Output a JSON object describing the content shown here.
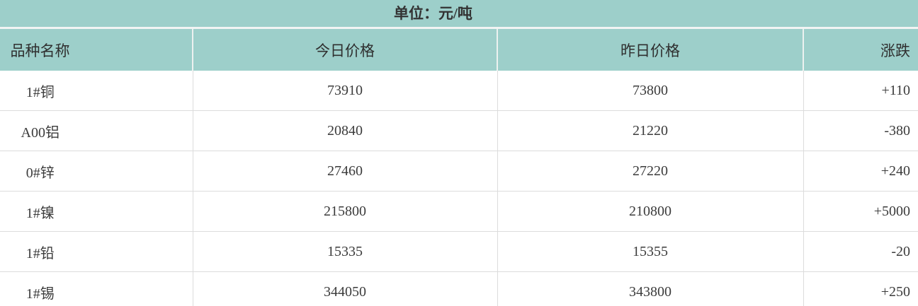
{
  "unit_bar": {
    "label": "单位：元/吨"
  },
  "table": {
    "headers": [
      {
        "key": "name",
        "label": "品种名称"
      },
      {
        "key": "today",
        "label": "今日价格"
      },
      {
        "key": "yesterday",
        "label": "昨日价格"
      },
      {
        "key": "change",
        "label": "涨跌"
      }
    ],
    "rows": [
      {
        "name": "1#铜",
        "today": "73910",
        "yesterday": "73800",
        "change": "+110"
      },
      {
        "name": "A00铝",
        "today": "20840",
        "yesterday": "21220",
        "change": "-380"
      },
      {
        "name": "0#锌",
        "today": "27460",
        "yesterday": "27220",
        "change": "+240"
      },
      {
        "name": "1#镍",
        "today": "215800",
        "yesterday": "210800",
        "change": "+5000"
      },
      {
        "name": "1#铅",
        "today": "15335",
        "yesterday": "15355",
        "change": "-20"
      },
      {
        "name": "1#锡",
        "today": "344050",
        "yesterday": "343800",
        "change": "+250"
      }
    ]
  },
  "colors": {
    "header_bg": "#9dcfca",
    "grid_line": "#dcdcdc",
    "header_divider": "#ecf1f0",
    "row_bg": "#ffffff",
    "text": "#3b3b3b"
  }
}
